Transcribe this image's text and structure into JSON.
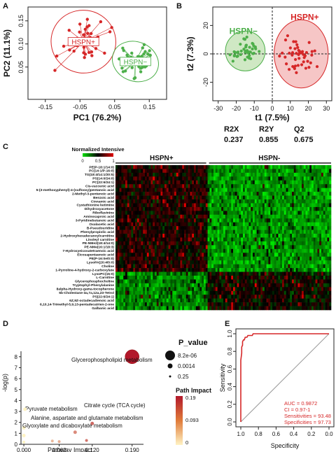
{
  "chart_data": [
    {
      "panel": "A",
      "type": "scatter",
      "xlabel": "PC1 (76.2%)",
      "ylabel": "PC2 (11.1%)",
      "xticks": [
        "-0.15",
        "-0.05",
        "0.05",
        "0.15"
      ],
      "yticks": [
        "0.05",
        "0.10",
        "0.15"
      ],
      "xlim": [
        -0.2,
        0.2
      ],
      "ylim": [
        -0.02,
        0.18
      ],
      "series": [
        {
          "name": "HSPN+",
          "color": "#d62728",
          "center": [
            -0.04,
            0.105
          ],
          "spread": [
            0.055,
            0.04
          ],
          "n": 40
        },
        {
          "name": "HSPN−",
          "color": "#4daf4a",
          "center": [
            0.11,
            0.062
          ],
          "spread": [
            0.04,
            0.025
          ],
          "n": 40
        }
      ]
    },
    {
      "panel": "B",
      "type": "scatter",
      "xlabel": "t1 (7.5%)",
      "ylabel": "t2 (7.3%)",
      "xticks": [
        "-30",
        "-20",
        "-10",
        "0",
        "10",
        "20",
        "30"
      ],
      "yticks": [
        "-20",
        "0",
        "20"
      ],
      "xlim": [
        -33,
        33
      ],
      "ylim": [
        -33,
        33
      ],
      "series": [
        {
          "name": "HSPN−",
          "color": "#4daf4a",
          "center": [
            -15,
            2
          ],
          "spread": [
            7,
            8
          ],
          "n": 44
        },
        {
          "name": "HSPN+",
          "color": "#d62728",
          "center": [
            15,
            -1
          ],
          "spread": [
            8,
            11
          ],
          "n": 46
        }
      ],
      "stats": [
        {
          "label": "R2X",
          "value": "0.237"
        },
        {
          "label": "R2Y",
          "value": "0.855"
        },
        {
          "label": "Q2",
          "value": "0.675"
        }
      ]
    },
    {
      "panel": "C",
      "type": "heatmap",
      "legend_title": "Normalized Intensive",
      "legend_ticks": [
        "0",
        "0.5",
        "1"
      ],
      "groups": [
        "HSPN+",
        "HSPN-"
      ],
      "group_split": 0.43,
      "columns": 110,
      "rows": [
        "PE(P-18:1/14:0)",
        "PC(14:1/P-16:0)",
        "TG(18:4/14:1/20:5)",
        "PS(14:0/24:0)",
        "PC(22:6/24:1)",
        "Cis-vaccenic acid",
        "5-(3-methoxyphenyl)-4-(sulfooxy)pentanoic acid",
        "2-Methyl-3-pentenoic acid",
        "Benzoic acid",
        "Cinnamic acid",
        "Cystathionine ketimine",
        "Dihydroxyacetone",
        "Riboflavinine",
        "Aminocaproic acid",
        "3-Pyridinebutanoic acid",
        "Oxalacetic acid",
        "B-Pseudouridine",
        "Phenylpropiolic acid",
        "2-Hydroxyhexadecanoylcarnitine",
        "Linoleyl carnitine",
        "PE-NMe2(18:4/14:0)",
        "PE-NMe(16:1/18:3)",
        "7-Hydroxyeicosatetraenoic acid",
        "Eicosapentaenoic acid",
        "PE(P-16:0e/0:0)",
        "LysoPA(20:4/0:0)",
        "Choline",
        "1-Pyrroline-4-hydroxy-2-carboxylate",
        "LysoPC(15:0)",
        "L-Carnitine",
        "Glycerophosphocholine",
        "Tryptophyl-Phenylalanine",
        "8alpha-Hydroxy-gama-tocopherone",
        "5b-Cholestane-3a,7a,12a,23-Tetrol",
        "PS(22:6/24:1)",
        "6Z,9Z-octadecadienoic acid",
        "6,10,14-Trimethyl-5,9,13-pentadecatrien-2-one",
        "Galbanic acid"
      ],
      "up_in_positive": 28
    },
    {
      "panel": "D",
      "type": "scatter",
      "xlabel": "Pathway Impact",
      "ylabel": "-log(p)",
      "xticks": [
        "0.000",
        "0.062",
        "0.120",
        "0.190"
      ],
      "yticks": [
        "0",
        "1",
        "2",
        "3",
        "4",
        "5",
        "6",
        "7",
        "8"
      ],
      "xlim": [
        -0.005,
        0.21
      ],
      "ylim": [
        0,
        8.5
      ],
      "size_legend_title": "P_value",
      "size_legend": [
        "8.2e-06",
        "0.0014",
        "0.25"
      ],
      "color_legend_title": "Path Impact",
      "color_legend": [
        "0.19",
        "0.093",
        "0"
      ],
      "points": [
        {
          "label": "Glycerophospholipid metabolism",
          "x": 0.19,
          "y": 8.0,
          "impact": 0.19,
          "size": 10
        },
        {
          "label": "Citrate cycle (TCA cycle)",
          "x": 0.12,
          "y": 1.9,
          "impact": 0.12,
          "size": 2.5
        },
        {
          "label": "Pyruvate metabolism",
          "x": 0.0,
          "y": 1.5,
          "impact": 0.0,
          "size": 2.5
        },
        {
          "label": "Alanine, aspartate and glutamate metabolism",
          "x": 0.09,
          "y": 1.1,
          "impact": 0.09,
          "size": 2.5
        },
        {
          "label": "Glyoxylate and dicaboxylate metabolism",
          "x": 0.0,
          "y": 0.8,
          "impact": 0.0,
          "size": 2.5
        },
        {
          "label": "",
          "x": 0.002,
          "y": 3.2,
          "impact": 0.0,
          "size": 2.5
        },
        {
          "label": "",
          "x": 0.0,
          "y": 0.2,
          "impact": 0.0,
          "size": 2
        },
        {
          "label": "",
          "x": 0.05,
          "y": 0.3,
          "impact": 0.05,
          "size": 2
        },
        {
          "label": "",
          "x": 0.062,
          "y": 0.25,
          "impact": 0.062,
          "size": 2
        },
        {
          "label": "",
          "x": 0.11,
          "y": 0.35,
          "impact": 0.11,
          "size": 2
        }
      ]
    },
    {
      "panel": "E",
      "type": "line",
      "xlabel": "Specificity",
      "ylabel": "Sensitivity",
      "xticks": [
        "1.0",
        "0.8",
        "0.6",
        "0.4",
        "0.2",
        "0.0"
      ],
      "yticks": [
        "0.0",
        "0.2",
        "0.4",
        "0.6",
        "0.8",
        "1.0"
      ],
      "roc": [
        [
          1.0,
          0.0
        ],
        [
          1.0,
          0.3
        ],
        [
          1.0,
          0.55
        ],
        [
          1.0,
          0.7
        ],
        [
          0.99,
          0.78
        ],
        [
          0.99,
          0.85
        ],
        [
          0.98,
          0.87
        ],
        [
          0.98,
          0.91
        ],
        [
          0.97,
          0.93
        ],
        [
          0.96,
          0.93
        ],
        [
          0.95,
          0.96
        ],
        [
          0.93,
          0.96
        ],
        [
          0.92,
          0.98
        ],
        [
          0.87,
          0.98
        ],
        [
          0.86,
          1.0
        ],
        [
          0.0,
          1.0
        ]
      ],
      "annotations": [
        "AUC = 0.9872",
        "CI = 0.97-1",
        "Sensitivities = 93.48",
        "Specificities = 97.73"
      ]
    }
  ],
  "panel_letters": [
    "A",
    "B",
    "C",
    "D",
    "E"
  ]
}
